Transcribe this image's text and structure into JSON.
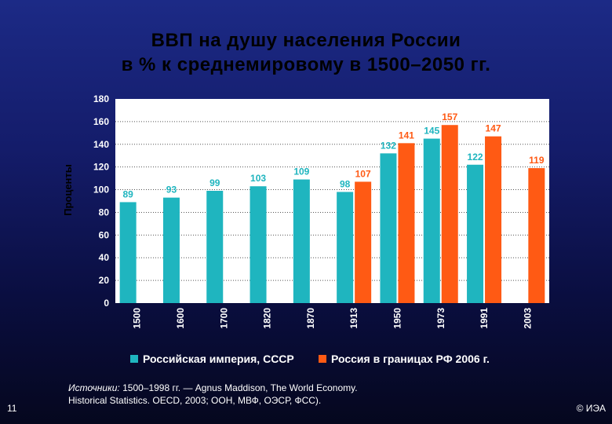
{
  "slide": {
    "title_line1": "ВВП на душу населения России",
    "title_line2": "в % к среднемировому в 1500–2050 гг.",
    "source_label": "Источники:",
    "source_line1": "1500–1998 гг. — Agnus Maddison, The World Economy.",
    "source_line2": "Historical Statistics. OECD, 2003; ООН, МВФ, ОЭСР, ФСС).",
    "page_number": "11",
    "copyright": "© ИЭА"
  },
  "chart_data": {
    "type": "bar",
    "title": "ВВП на душу населения России в % к среднемировому в 1500–2050 гг.",
    "ylabel": "Проценты",
    "xlabel": "",
    "ylim": [
      0,
      180
    ],
    "yticks": [
      0,
      20,
      40,
      60,
      80,
      100,
      120,
      140,
      160,
      180
    ],
    "grid": true,
    "legend_position": "bottom",
    "categories": [
      "1500",
      "1600",
      "1700",
      "1820",
      "1870",
      "1913",
      "1950",
      "1973",
      "1991",
      "2003"
    ],
    "series": [
      {
        "name": "Российская империя, СССР",
        "color": "#1fb5bf",
        "values": [
          89,
          93,
          99,
          103,
          109,
          98,
          132,
          145,
          122,
          null
        ],
        "labels": [
          "89",
          "93",
          "99",
          "103",
          "109",
          "98",
          "132",
          "145",
          "122",
          ""
        ]
      },
      {
        "name": "Россия в границах РФ 2006 г.",
        "color": "#ff5a14",
        "values": [
          null,
          null,
          null,
          null,
          null,
          107,
          141,
          157,
          147,
          119
        ],
        "labels": [
          "",
          "",
          "",
          "",
          "",
          "107",
          "141",
          "157",
          "147",
          "119"
        ]
      }
    ]
  }
}
